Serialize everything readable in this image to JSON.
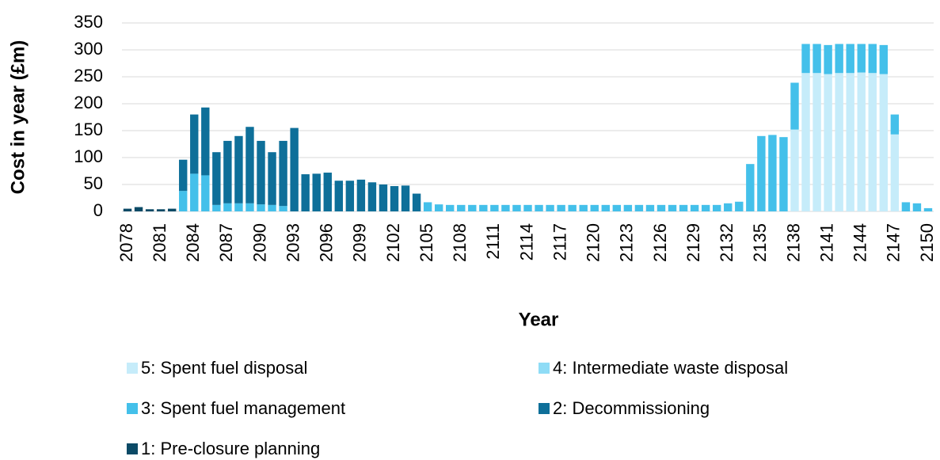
{
  "chart_data": {
    "type": "stacked_bar",
    "y_label": "Cost in year (£m)",
    "x_label": "Year",
    "categories": [
      "2078",
      null,
      null,
      "2081",
      null,
      null,
      "2084",
      null,
      null,
      "2087",
      null,
      null,
      "2090",
      null,
      null,
      "2093",
      null,
      null,
      "2096",
      null,
      null,
      "2099",
      null,
      null,
      "2102",
      null,
      null,
      "2105",
      null,
      null,
      "2108",
      null,
      null,
      "2111",
      null,
      null,
      "2114",
      null,
      null,
      "2117",
      null,
      null,
      "2120",
      null,
      null,
      "2123",
      null,
      null,
      "2126",
      null,
      null,
      "2129",
      null,
      null,
      "2132",
      null,
      null,
      "2135",
      null,
      null,
      "2138",
      null,
      null,
      "2141",
      null,
      null,
      "2144",
      null,
      null,
      "2147",
      null,
      null,
      "2150"
    ],
    "series": [
      {
        "name": "5: Spent fuel disposal",
        "color": "#c6ecfa",
        "values": [
          0,
          0,
          0,
          0,
          0,
          0,
          0,
          0,
          0,
          0,
          0,
          0,
          0,
          0,
          0,
          0,
          0,
          0,
          0,
          0,
          0,
          0,
          0,
          0,
          0,
          0,
          0,
          0,
          0,
          0,
          0,
          0,
          0,
          0,
          0,
          0,
          0,
          0,
          0,
          0,
          0,
          0,
          0,
          0,
          0,
          0,
          0,
          0,
          0,
          0,
          0,
          0,
          0,
          0,
          0,
          0,
          0,
          0,
          0,
          0,
          152,
          257,
          257,
          255,
          257,
          257,
          258,
          257,
          255,
          143,
          0,
          0,
          0
        ]
      },
      {
        "name": "4: Intermediate waste disposal",
        "color": "#8fdcf6",
        "values": [
          0,
          0,
          0,
          0,
          0,
          0,
          0,
          0,
          0,
          0,
          0,
          0,
          0,
          0,
          0,
          0,
          0,
          0,
          0,
          0,
          0,
          0,
          0,
          0,
          0,
          0,
          0,
          0,
          0,
          0,
          0,
          0,
          0,
          0,
          0,
          0,
          0,
          0,
          0,
          0,
          0,
          0,
          0,
          0,
          0,
          0,
          0,
          0,
          0,
          0,
          0,
          0,
          0,
          0,
          0,
          0,
          0,
          0,
          0,
          0,
          0,
          0,
          0,
          0,
          0,
          0,
          0,
          0,
          0,
          0,
          0,
          0,
          0
        ]
      },
      {
        "name": "3: Spent fuel management",
        "color": "#44c0ea",
        "values": [
          0,
          0,
          0,
          0,
          0,
          38,
          70,
          67,
          12,
          15,
          15,
          15,
          13,
          12,
          10,
          0,
          0,
          0,
          0,
          0,
          0,
          0,
          0,
          0,
          0,
          0,
          0,
          17,
          13,
          12,
          12,
          12,
          12,
          12,
          12,
          12,
          12,
          12,
          12,
          12,
          12,
          12,
          12,
          12,
          12,
          12,
          12,
          12,
          12,
          12,
          12,
          12,
          12,
          12,
          15,
          18,
          88,
          140,
          142,
          138,
          87,
          54,
          54,
          54,
          54,
          54,
          53,
          54,
          54,
          37,
          17,
          15,
          6
        ]
      },
      {
        "name": "2: Decommissioning",
        "color": "#0e6f99",
        "values": [
          0,
          0,
          0,
          0,
          0,
          58,
          110,
          126,
          98,
          116,
          125,
          142,
          118,
          98,
          121,
          155,
          69,
          70,
          72,
          57,
          57,
          59,
          54,
          50,
          47,
          48,
          33,
          0,
          0,
          0,
          0,
          0,
          0,
          0,
          0,
          0,
          0,
          0,
          0,
          0,
          0,
          0,
          0,
          0,
          0,
          0,
          0,
          0,
          0,
          0,
          0,
          0,
          0,
          0,
          0,
          0,
          0,
          0,
          0,
          0,
          0,
          0,
          0,
          0,
          0,
          0,
          0,
          0,
          0,
          0,
          0,
          0,
          0
        ]
      },
      {
        "name": "1: Pre-closure planning",
        "color": "#0b4a66",
        "values": [
          5,
          8,
          4,
          4,
          5,
          0,
          0,
          0,
          0,
          0,
          0,
          0,
          0,
          0,
          0,
          0,
          0,
          0,
          0,
          0,
          0,
          0,
          0,
          0,
          0,
          0,
          0,
          0,
          0,
          0,
          0,
          0,
          0,
          0,
          0,
          0,
          0,
          0,
          0,
          0,
          0,
          0,
          0,
          0,
          0,
          0,
          0,
          0,
          0,
          0,
          0,
          0,
          0,
          0,
          0,
          0,
          0,
          0,
          0,
          0,
          0,
          0,
          0,
          0,
          0,
          0,
          0,
          0,
          0,
          0,
          0,
          0,
          0
        ]
      }
    ],
    "ylim": [
      0,
      350
    ],
    "yticks": [
      0,
      50,
      100,
      150,
      200,
      250,
      300,
      350
    ],
    "grid": true
  }
}
